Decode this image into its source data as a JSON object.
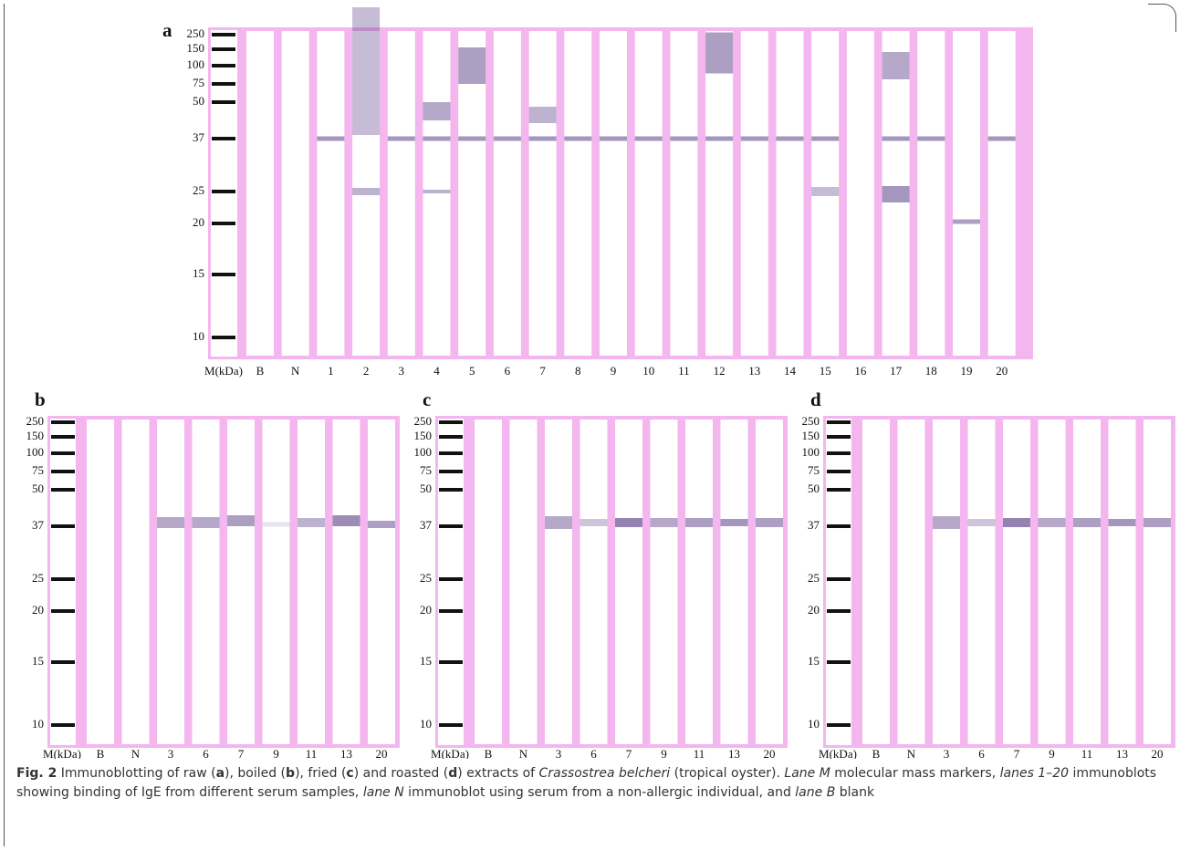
{
  "panels": [
    {
      "label": "a",
      "markers": [
        "250",
        "150",
        "100",
        "75",
        "50",
        "37",
        "25",
        "20",
        "15",
        "10"
      ],
      "lanes": [
        "M(kDa)",
        "B",
        "N",
        "1",
        "2",
        "3",
        "4",
        "5",
        "6",
        "7",
        "8",
        "9",
        "10",
        "11",
        "12",
        "13",
        "14",
        "15",
        "16",
        "17",
        "18",
        "19",
        "20"
      ]
    },
    {
      "label": "b",
      "markers": [
        "250",
        "150",
        "100",
        "75",
        "50",
        "37",
        "25",
        "20",
        "15",
        "10"
      ],
      "lanes": [
        "M(kDa)",
        "B",
        "N",
        "3",
        "6",
        "7",
        "9",
        "11",
        "13",
        "20"
      ]
    },
    {
      "label": "c",
      "markers": [
        "250",
        "150",
        "100",
        "75",
        "50",
        "37",
        "25",
        "20",
        "15",
        "10"
      ],
      "lanes": [
        "M(kDa)",
        "B",
        "N",
        "3",
        "6",
        "7",
        "9",
        "11",
        "13",
        "20"
      ]
    },
    {
      "label": "d",
      "markers": [
        "250",
        "150",
        "100",
        "75",
        "50",
        "37",
        "25",
        "20",
        "15",
        "10"
      ],
      "lanes": [
        "M(kDa)",
        "B",
        "N",
        "3",
        "6",
        "7",
        "9",
        "11",
        "13",
        "20"
      ]
    }
  ],
  "caption": [
    {
      "text": "Fig. 2",
      "style": "bold"
    },
    {
      "text": " Immunoblotting of raw (",
      "style": "normal"
    },
    {
      "text": "a",
      "style": "bold"
    },
    {
      "text": "), boiled (",
      "style": "normal"
    },
    {
      "text": "b",
      "style": "bold"
    },
    {
      "text": "), fried (",
      "style": "normal"
    },
    {
      "text": "c",
      "style": "bold"
    },
    {
      "text": ") and roasted (",
      "style": "normal"
    },
    {
      "text": "d",
      "style": "bold"
    },
    {
      "text": ") extracts of ",
      "style": "normal"
    },
    {
      "text": "Crassostrea belcheri",
      "style": "italic"
    },
    {
      "text": " (tropical oyster). ",
      "style": "normal"
    },
    {
      "text": "Lane M",
      "style": "italic"
    },
    {
      "text": " molecular mass markers, ",
      "style": "normal"
    },
    {
      "text": "lanes 1–20",
      "style": "italic"
    },
    {
      "text": " immunoblots showing binding of IgE from different serum samples, ",
      "style": "normal"
    },
    {
      "text": "lane N",
      "style": "italic"
    },
    {
      "text": " immunoblot using serum from a non-allergic individual, and ",
      "style": "normal"
    },
    {
      "text": "lane B",
      "style": "italic"
    },
    {
      "text": " blank",
      "style": "normal"
    }
  ]
}
